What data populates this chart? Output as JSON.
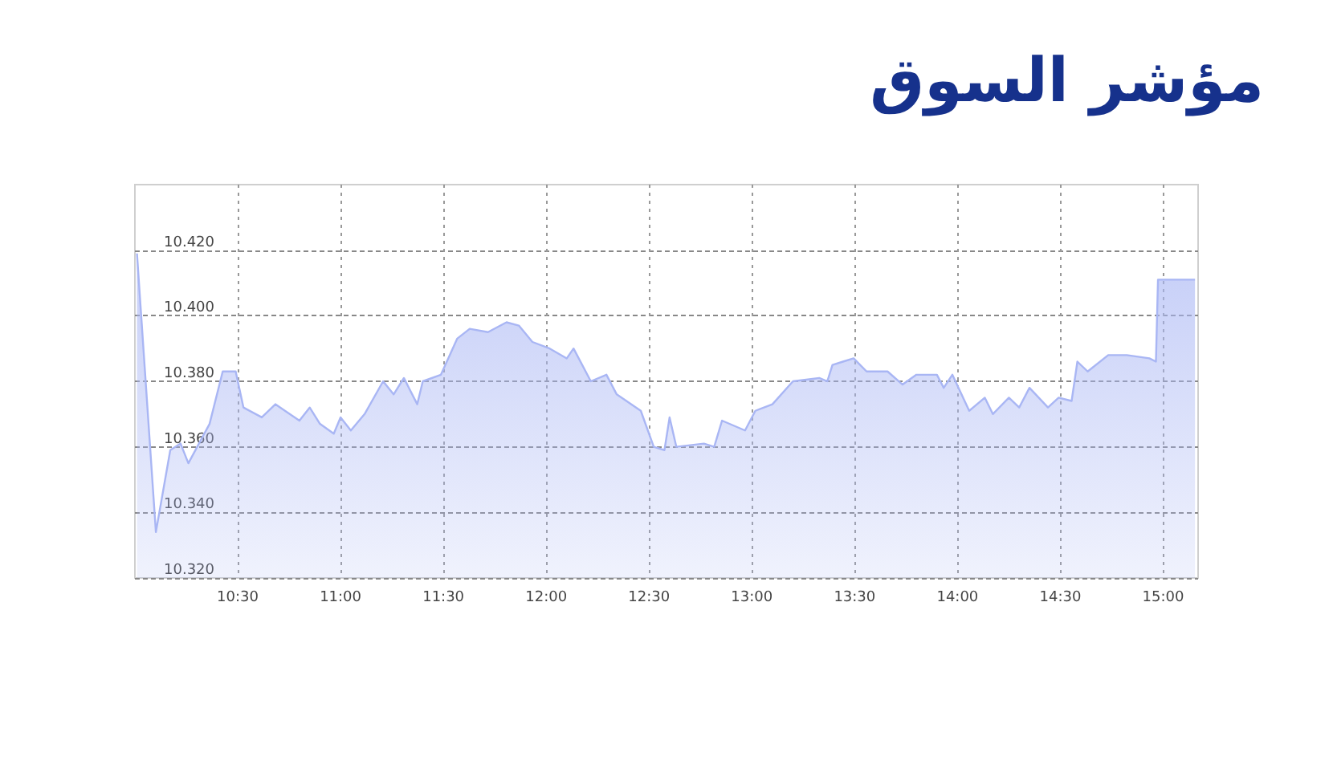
{
  "chart_data": {
    "type": "area",
    "title": "مؤشر السوق",
    "x": [
      10.01,
      10.102,
      10.172,
      10.222,
      10.26,
      10.363,
      10.427,
      10.49,
      10.528,
      10.617,
      10.683,
      10.8,
      10.85,
      10.9,
      10.967,
      11,
      11.05,
      11.117,
      11.207,
      11.258,
      11.308,
      11.373,
      11.4,
      11.488,
      11.567,
      11.628,
      11.717,
      11.807,
      11.867,
      11.933,
      12.017,
      12.1,
      12.133,
      12.217,
      12.293,
      12.343,
      12.46,
      12.523,
      12.575,
      12.6,
      12.633,
      12.767,
      12.817,
      12.855,
      12.967,
      13.017,
      13.1,
      13.2,
      13.328,
      13.367,
      13.392,
      13.443,
      13.495,
      13.558,
      13.66,
      13.733,
      13.8,
      13.9,
      13.933,
      13.975,
      14.057,
      14.133,
      14.172,
      14.25,
      14.3,
      14.35,
      14.44,
      14.492,
      14.555,
      14.583,
      14.633,
      14.733,
      14.823,
      14.933,
      14.965,
      14.975,
      15.155
    ],
    "series": [
      {
        "color": "#a9b6f4",
        "values": [
          10.419,
          10.334,
          10.359,
          10.361,
          10.355,
          10.367,
          10.383,
          10.383,
          10.372,
          10.369,
          10.373,
          10.368,
          10.372,
          10.367,
          10.364,
          10.369,
          10.365,
          10.37,
          10.38,
          10.376,
          10.381,
          10.373,
          10.38,
          10.382,
          10.393,
          10.396,
          10.395,
          10.398,
          10.397,
          10.392,
          10.39,
          10.387,
          10.39,
          10.38,
          10.382,
          10.376,
          10.371,
          10.36,
          10.359,
          10.369,
          10.36,
          10.361,
          10.36,
          10.368,
          10.365,
          10.371,
          10.373,
          10.38,
          10.381,
          10.38,
          10.385,
          10.386,
          10.387,
          10.383,
          10.383,
          10.379,
          10.382,
          10.382,
          10.378,
          10.382,
          10.371,
          10.375,
          10.37,
          10.375,
          10.372,
          10.378,
          10.372,
          10.375,
          10.374,
          10.386,
          10.383,
          10.388,
          10.388,
          10.387,
          10.386,
          10.411,
          10.411
        ]
      }
    ],
    "xlim": [
      10,
      15.17
    ],
    "xticks": [
      {
        "value": 10.5,
        "label": "10:30"
      },
      {
        "value": 11,
        "label": "11:00"
      },
      {
        "value": 11.5,
        "label": "11:30"
      },
      {
        "value": 12,
        "label": "12:00"
      },
      {
        "value": 12.5,
        "label": "12:30"
      },
      {
        "value": 13,
        "label": "13:00"
      },
      {
        "value": 13.5,
        "label": "13:30"
      },
      {
        "value": 14,
        "label": "14:00"
      },
      {
        "value": 14.5,
        "label": "14:30"
      },
      {
        "value": 15,
        "label": "15:00"
      }
    ],
    "ylim": [
      10.32,
      10.44
    ],
    "yticks": [
      {
        "value": 10.32,
        "label": "10.320"
      },
      {
        "value": 10.34,
        "label": "10.340"
      },
      {
        "value": 10.36,
        "label": "10.360"
      },
      {
        "value": 10.38,
        "label": "10.380"
      },
      {
        "value": 10.4,
        "label": "10.400"
      },
      {
        "value": 10.42,
        "label": "10.420"
      }
    ],
    "grid": true,
    "marker": "none"
  }
}
